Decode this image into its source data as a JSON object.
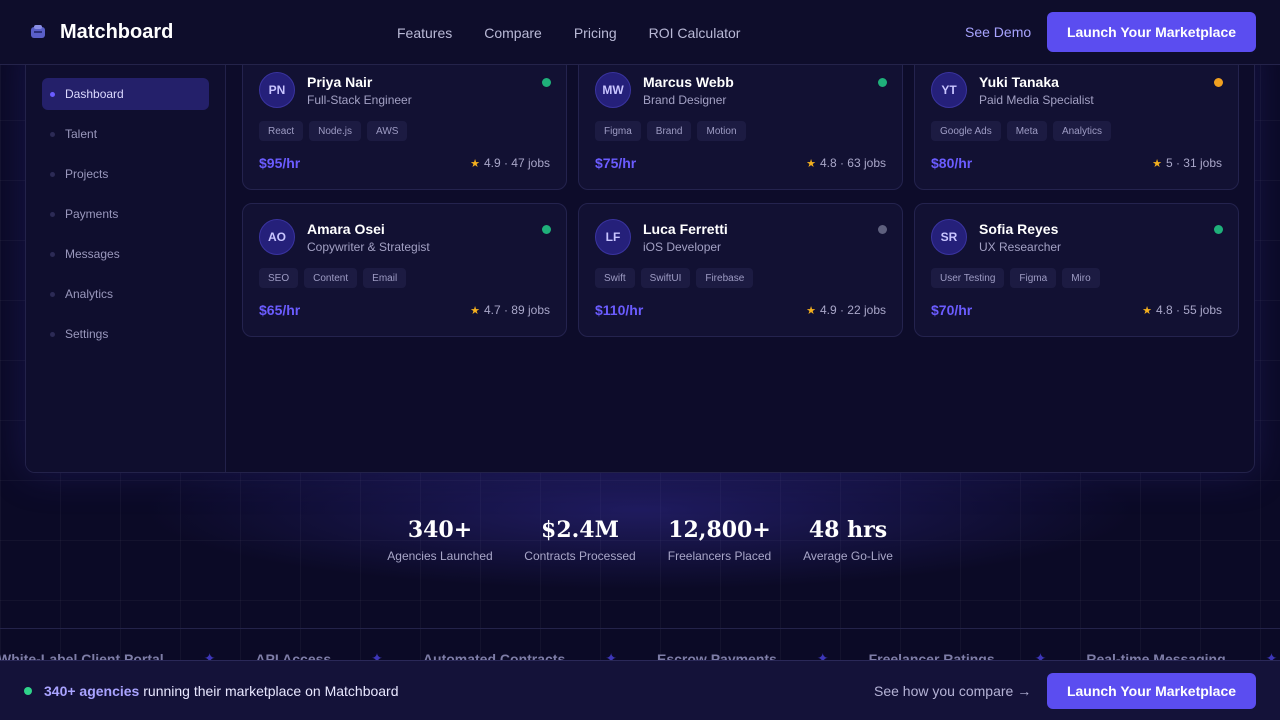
{
  "header": {
    "brand": "Matchboard",
    "nav": [
      "Features",
      "Compare",
      "Pricing",
      "ROI Calculator"
    ],
    "see_demo": "See Demo",
    "cta": "Launch Your Marketplace"
  },
  "sidebar": {
    "items": [
      {
        "label": "Dashboard",
        "active": true
      },
      {
        "label": "Talent",
        "active": false
      },
      {
        "label": "Projects",
        "active": false
      },
      {
        "label": "Payments",
        "active": false
      },
      {
        "label": "Messages",
        "active": false
      },
      {
        "label": "Analytics",
        "active": false
      },
      {
        "label": "Settings",
        "active": false
      }
    ]
  },
  "freelancers": [
    {
      "initials": "PN",
      "name": "Priya Nair",
      "role": "Full-Stack Engineer",
      "status": "online",
      "tags": [
        "React",
        "Node.js",
        "AWS"
      ],
      "rate": "$95/hr",
      "rating": "4.9",
      "jobs": "47 jobs"
    },
    {
      "initials": "MW",
      "name": "Marcus Webb",
      "role": "Brand Designer",
      "status": "online",
      "tags": [
        "Figma",
        "Brand",
        "Motion"
      ],
      "rate": "$75/hr",
      "rating": "4.8",
      "jobs": "63 jobs"
    },
    {
      "initials": "YT",
      "name": "Yuki Tanaka",
      "role": "Paid Media Specialist",
      "status": "away",
      "tags": [
        "Google Ads",
        "Meta",
        "Analytics"
      ],
      "rate": "$80/hr",
      "rating": "5",
      "jobs": "31 jobs"
    },
    {
      "initials": "AO",
      "name": "Amara Osei",
      "role": "Copywriter & Strategist",
      "status": "online",
      "tags": [
        "SEO",
        "Content",
        "Email"
      ],
      "rate": "$65/hr",
      "rating": "4.7",
      "jobs": "89 jobs"
    },
    {
      "initials": "LF",
      "name": "Luca Ferretti",
      "role": "iOS Developer",
      "status": "offline",
      "tags": [
        "Swift",
        "SwiftUI",
        "Firebase"
      ],
      "rate": "$110/hr",
      "rating": "4.9",
      "jobs": "22 jobs"
    },
    {
      "initials": "SR",
      "name": "Sofia Reyes",
      "role": "UX Researcher",
      "status": "online",
      "tags": [
        "User Testing",
        "Figma",
        "Miro"
      ],
      "rate": "$70/hr",
      "rating": "4.8",
      "jobs": "55 jobs"
    }
  ],
  "status_colors": {
    "online": "#1fb07a",
    "away": "#f0a020",
    "offline": "#5e607e"
  },
  "stats": [
    {
      "value": "340+",
      "label": "Agencies Launched"
    },
    {
      "value": "$2.4M",
      "label": "Contracts Processed"
    },
    {
      "value": "12,800+",
      "label": "Freelancers Placed"
    },
    {
      "value": "48 hrs",
      "label": "Average Go-Live"
    }
  ],
  "ticker": [
    "White-Label Client Portal",
    "API Access",
    "Automated Contracts",
    "Escrow Payments",
    "Freelancer Ratings",
    "Real-time Messaging"
  ],
  "bottom_bar": {
    "highlight": "340+ agencies",
    "text": "running their marketplace on Matchboard",
    "compare": "See how you compare",
    "compare_arrow": "→",
    "cta": "Launch Your Marketplace"
  },
  "colors": {
    "accent": "#5b4df0",
    "rate": "#6b5cff",
    "star": "#f4b01e"
  }
}
